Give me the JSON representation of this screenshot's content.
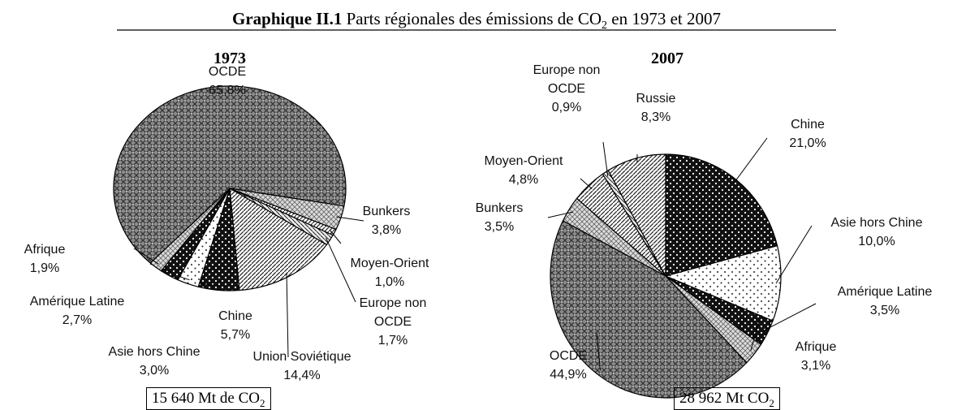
{
  "title": {
    "bold": "Graphique II.1",
    "text": "Parts régionales des émissions de CO",
    "sub": "2",
    "rest": "en 1973 et 2007"
  },
  "chart_data": [
    {
      "type": "pie",
      "title": "1973",
      "categories": [
        "OCDE",
        "Bunkers",
        "Moyen-Orient",
        "Europe non OCDE",
        "Union Soviétique",
        "Chine",
        "Asie hors Chine",
        "Amérique Latine",
        "Afrique"
      ],
      "values": [
        65.8,
        3.8,
        1.0,
        1.7,
        14.4,
        5.7,
        3.0,
        2.7,
        1.9
      ],
      "value_labels": [
        "65,8%",
        "3,8%",
        "1,0%",
        "1,7%",
        "14,4%",
        "5,7%",
        "3,0%",
        "2,7%",
        "1,9%"
      ],
      "colors": [
        "url(#checker)",
        "url(#lightcross)",
        "url(#hatch)",
        "url(#hatch2)",
        "url(#hatch)",
        "url(#darkdots)",
        "url(#sparse)",
        "url(#darkdots)",
        "url(#lightcross)"
      ],
      "annotation": {
        "text": "15 640 Mt de CO",
        "sub": "2"
      }
    },
    {
      "type": "pie",
      "title": "2007",
      "categories": [
        "Chine",
        "Asie hors Chine",
        "Amérique Latine",
        "Afrique",
        "OCDE",
        "Bunkers",
        "Moyen-Orient",
        "Europe non OCDE",
        "Russie"
      ],
      "values": [
        21.0,
        10.0,
        3.5,
        3.1,
        44.9,
        3.5,
        4.8,
        0.9,
        8.3
      ],
      "value_labels": [
        "21,0%",
        "10,0%",
        "3,5%",
        "3,1%",
        "44,9%",
        "3,5%",
        "4,8%",
        "0,9%",
        "8,3%"
      ],
      "colors": [
        "url(#darkdots)",
        "url(#sparse)",
        "url(#darkdots)",
        "url(#lightcross)",
        "url(#checker)",
        "url(#lightcross)",
        "url(#hatch)",
        "url(#hatch2)",
        "url(#hatch)"
      ],
      "annotation": {
        "text": "28 962 Mt CO",
        "sub": "2"
      }
    }
  ]
}
